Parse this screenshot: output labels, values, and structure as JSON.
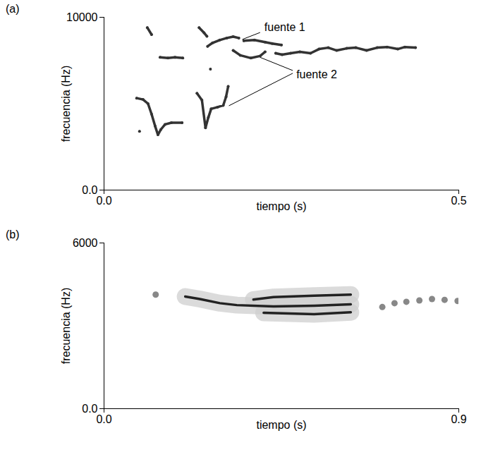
{
  "chart_data": [
    {
      "type": "line",
      "title": "(a)",
      "x_label": "tiempo (s)",
      "y_label": "frecuencia (Hz)",
      "xlim": [
        0,
        0.5
      ],
      "ylim": [
        0,
        10000
      ],
      "xticks": [
        {
          "value": 0,
          "label": "0.0"
        },
        0.5
      ],
      "yticks": [
        {
          "value": 0,
          "label": "0.0"
        },
        10000
      ],
      "grid": false,
      "series": [
        {
          "name": "fuente 1",
          "color": "#333333",
          "marker": "circle",
          "x": [
            0.061,
            0.067,
            0.067,
            0.134,
            0.141,
            0.145,
            0.145,
            0.146,
            0.153,
            0.163,
            0.173,
            0.182,
            0.19,
            0.19,
            0.197,
            0.212,
            0.227,
            0.237,
            0.25
          ],
          "values": [
            9400,
            9000,
            null,
            9400,
            9100,
            8900,
            null,
            8320,
            8520,
            8680,
            8800,
            8880,
            8800,
            null,
            8640,
            8680,
            8560,
            8480,
            8400
          ]
        },
        {
          "name": "fuente 2",
          "color": "#333333",
          "marker": "circle",
          "x": [
            0.079,
            0.09,
            0.1,
            0.111,
            0.111,
            0.046,
            0.055,
            0.062,
            0.067,
            0.072,
            0.076,
            0.08,
            0.086,
            0.095,
            0.11,
            0.11,
            0.05,
            0.05,
            0.131,
            0.138,
            0.143,
            0.147,
            0.151,
            0.16,
            0.168,
            0.172,
            0.175,
            0.175,
            0.15,
            0.15,
            0.182,
            0.192,
            0.207,
            0.22,
            0.227,
            0.227,
            0.242,
            0.251,
            0.263,
            0.276,
            0.291,
            0.303,
            0.316,
            0.328,
            0.342,
            0.355,
            0.37,
            0.385,
            0.399,
            0.414,
            0.424,
            0.439
          ],
          "values": [
            7680,
            7640,
            7680,
            7640,
            null,
            5320,
            5240,
            5000,
            4400,
            3700,
            3200,
            3500,
            3800,
            3900,
            3900,
            null,
            3400,
            null,
            5600,
            5200,
            3600,
            4200,
            4700,
            4800,
            4900,
            5400,
            6000,
            null,
            7000,
            null,
            8080,
            7800,
            7640,
            7760,
            8000,
            null,
            7920,
            7840,
            7920,
            8000,
            7920,
            8160,
            8240,
            8080,
            8200,
            8240,
            8080,
            8240,
            8280,
            8160,
            8280,
            8240
          ]
        }
      ],
      "annotations": [
        {
          "text": "fuente 1",
          "x": 0.226,
          "y": 9400,
          "arrows": [
            {
              "x1": 0.22,
              "y1": 9120,
              "x2": 0.195,
              "y2": 8720
            }
          ]
        },
        {
          "text": "fuente 2",
          "x": 0.271,
          "y": 6680,
          "arrows": [
            {
              "x1": 0.266,
              "y1": 6920,
              "x2": 0.22,
              "y2": 7680
            },
            {
              "x1": 0.266,
              "y1": 6760,
              "x2": 0.176,
              "y2": 4880
            }
          ]
        }
      ]
    },
    {
      "type": "line",
      "title": "(b)",
      "x_label": "tiempo (s)",
      "y_label": "frecuencia (Hz)",
      "xlim": [
        0,
        0.9
      ],
      "ylim": [
        0,
        6000
      ],
      "xticks": [
        {
          "value": 0,
          "label": "0.0"
        },
        0.9
      ],
      "yticks": [
        {
          "value": 0,
          "label": "0.0"
        },
        6000
      ],
      "grid": false,
      "series": [
        {
          "color": "#222222",
          "line_style": "halo",
          "x": [
            0.206,
            0.243,
            0.294,
            0.337,
            0.43,
            0.533,
            0.626
          ],
          "values": [
            4060,
            3970,
            3820,
            3750,
            3700,
            3730,
            3780
          ]
        },
        {
          "color": "#222222",
          "line_style": "halo",
          "x": [
            0.379,
            0.43,
            0.533,
            0.626
          ],
          "values": [
            3950,
            4040,
            4090,
            4130
          ]
        },
        {
          "color": "#222222",
          "line_style": "halo",
          "x": [
            0.405,
            0.533,
            0.626
          ],
          "values": [
            3470,
            3420,
            3490
          ]
        },
        {
          "type": "scatter",
          "color": "#888888",
          "x": [
            0.131,
            0.706,
            0.737,
            0.767,
            0.8,
            0.832,
            0.864,
            0.897
          ],
          "values": [
            4130,
            3680,
            3820,
            3870,
            3920,
            3970,
            3940,
            3900
          ]
        }
      ]
    }
  ]
}
